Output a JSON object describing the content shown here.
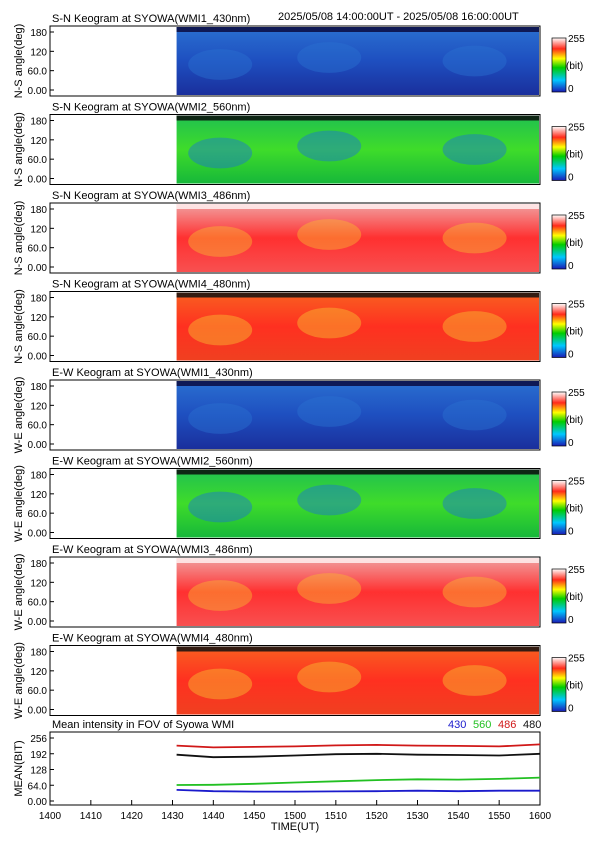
{
  "header": {
    "time_range": "2025/05/08 14:00:00UT - 2025/05/08 16:00:00UT"
  },
  "panels": [
    {
      "title": "S-N Keogram at SYOWA(WMI1_430nm)",
      "ylabel": "N-S angle(deg)",
      "palette": "blue"
    },
    {
      "title": "S-N Keogram at SYOWA(WMI2_560nm)",
      "ylabel": "N-S angle(deg)",
      "palette": "green"
    },
    {
      "title": "S-N Keogram at SYOWA(WMI3_486nm)",
      "ylabel": "N-S angle(deg)",
      "palette": "red"
    },
    {
      "title": "S-N Keogram at SYOWA(WMI4_480nm)",
      "ylabel": "N-S angle(deg)",
      "palette": "redorange"
    },
    {
      "title": "E-W Keogram at SYOWA(WMI1_430nm)",
      "ylabel": "W-E angle(deg)",
      "palette": "blue"
    },
    {
      "title": "E-W Keogram at SYOWA(WMI2_560nm)",
      "ylabel": "W-E angle(deg)",
      "palette": "green"
    },
    {
      "title": "E-W Keogram at SYOWA(WMI3_486nm)",
      "ylabel": "W-E angle(deg)",
      "palette": "red"
    },
    {
      "title": "E-W Keogram at SYOWA(WMI4_480nm)",
      "ylabel": "W-E angle(deg)",
      "palette": "redorange"
    }
  ],
  "keogram_yticks": [
    "0.00",
    "60.0",
    "120",
    "180"
  ],
  "colorbar": {
    "max_label": "255",
    "unit_label": "(bit)",
    "min_label": "0"
  },
  "data_start": "1431",
  "chart_data": {
    "type": "line",
    "title": "Mean intensity in FOV of Syowa WMI",
    "xlabel": "TIME(UT)",
    "ylabel": "MEAN(BIT)",
    "xlim": [
      1400,
      1600
    ],
    "ylim": [
      0,
      256
    ],
    "x_ticks": [
      "1400",
      "1410",
      "1420",
      "1430",
      "1440",
      "1450",
      "1500",
      "1510",
      "1520",
      "1530",
      "1540",
      "1550",
      "1600"
    ],
    "y_ticks": [
      "0.00",
      "64.0",
      "128",
      "192",
      "256"
    ],
    "x": [
      "1431",
      "1440",
      "1450",
      "1500",
      "1510",
      "1520",
      "1530",
      "1540",
      "1550",
      "1600"
    ],
    "series": [
      {
        "name": "430",
        "color": "#1a1acc",
        "values": [
          45,
          40,
          38,
          38,
          39,
          40,
          42,
          40,
          42,
          42
        ]
      },
      {
        "name": "560",
        "color": "#22c022",
        "values": [
          65,
          66,
          70,
          75,
          80,
          85,
          88,
          87,
          90,
          95
        ]
      },
      {
        "name": "486",
        "color": "#d01818",
        "values": [
          225,
          218,
          220,
          222,
          226,
          228,
          225,
          224,
          222,
          230
        ]
      },
      {
        "name": "480",
        "color": "#111111",
        "values": [
          188,
          178,
          180,
          185,
          190,
          192,
          188,
          187,
          185,
          192
        ]
      }
    ]
  }
}
